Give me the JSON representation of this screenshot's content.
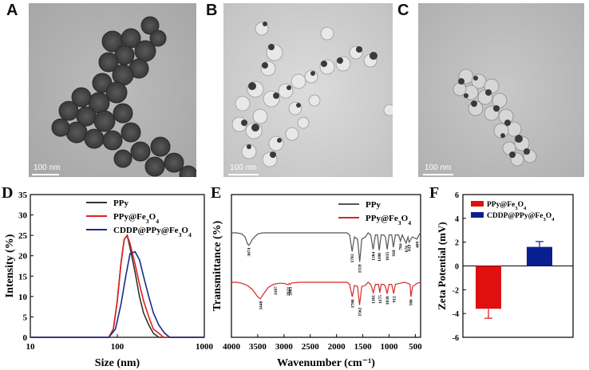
{
  "panels": {
    "A": {
      "label": "A",
      "scale_bar": "100 nm"
    },
    "B": {
      "label": "B",
      "scale_bar": "100 nm"
    },
    "C": {
      "label": "C",
      "scale_bar": "100 nm"
    },
    "D": {
      "label": "D"
    },
    "E": {
      "label": "E"
    },
    "F": {
      "label": "F"
    }
  },
  "colors": {
    "ppy": "#333333",
    "ppy_fe3o4": "#e02020",
    "cddp": "#1a2a8a"
  },
  "chart_data": [
    {
      "panel": "D",
      "type": "line",
      "xlabel": "Size (nm)",
      "ylabel": "Intensity (%)",
      "xscale": "log",
      "xlim": [
        10,
        1000
      ],
      "ylim": [
        0,
        35
      ],
      "xticks": [
        "10",
        "100",
        "1000"
      ],
      "yticks": [
        "0",
        "5",
        "10",
        "15",
        "20",
        "25",
        "30",
        "35"
      ],
      "legend": [
        "PPy",
        "PPy@Fe3O4",
        "CDDP@PPy@Fe3O4"
      ],
      "legend_placement": "top-right",
      "series": [
        {
          "name": "PPy",
          "color": "#333333",
          "x": [
            10,
            80,
            90,
            100,
            110,
            120,
            130,
            140,
            160,
            180,
            200,
            230,
            260,
            300,
            1000
          ],
          "y": [
            0,
            0,
            2,
            9,
            18,
            24,
            25,
            22,
            16,
            10,
            6,
            3,
            1,
            0,
            0
          ]
        },
        {
          "name": "PPy@Fe3O4",
          "color": "#e02020",
          "x": [
            10,
            80,
            90,
            100,
            110,
            120,
            130,
            140,
            160,
            180,
            200,
            230,
            260,
            300,
            340,
            1000
          ],
          "y": [
            0,
            0,
            2,
            9,
            18,
            24,
            25,
            23,
            18,
            13,
            9,
            5,
            2,
            1,
            0,
            0
          ]
        },
        {
          "name": "CDDP@PPy@Fe3O4",
          "color": "#1a2a8a",
          "x": [
            10,
            80,
            95,
            110,
            125,
            140,
            160,
            180,
            200,
            230,
            260,
            300,
            350,
            400,
            1000
          ],
          "y": [
            0,
            0,
            2,
            8,
            15,
            20.5,
            21,
            19,
            15,
            10,
            6,
            3,
            1,
            0,
            0
          ]
        }
      ]
    },
    {
      "panel": "E",
      "type": "line",
      "xlabel": "Wavenumber (cm⁻¹)",
      "ylabel": "Transmittance (%)",
      "xlim": [
        4000,
        400
      ],
      "xticks": [
        "4000",
        "3500",
        "3000",
        "2500",
        "2000",
        "1500",
        "1000",
        "500"
      ],
      "legend": [
        "PPy",
        "PPy@Fe3O4"
      ],
      "legend_placement": "top-right",
      "series": [
        {
          "name": "PPy",
          "color": "#555555",
          "x": [
            4000,
            3900,
            3800,
            3740,
            3700,
            3674,
            3640,
            3600,
            3500,
            3400,
            3200,
            3000,
            2800,
            2500,
            2200,
            2000,
            1800,
            1750,
            1703,
            1660,
            1600,
            1559,
            1520,
            1450,
            1400,
            1350,
            1304,
            1260,
            1220,
            1188,
            1150,
            1100,
            1070,
            1035,
            1000,
            950,
            918,
            880,
            820,
            784,
            750,
            676,
            640,
            619,
            560,
            469,
            430,
            400
          ],
          "y": [
            0,
            0,
            -0.05,
            -0.2,
            -0.5,
            -0.6,
            -0.5,
            -0.3,
            -0.05,
            0,
            0,
            0,
            0,
            0,
            0,
            0,
            0,
            -0.1,
            -0.9,
            -0.2,
            -0.3,
            -1.4,
            -0.3,
            -0.2,
            0,
            -0.1,
            -0.8,
            -0.1,
            -0.1,
            -0.85,
            -0.1,
            -0.1,
            -0.2,
            -0.8,
            -0.1,
            -0.1,
            -0.7,
            -0.1,
            -0.1,
            -0.4,
            -0.1,
            -0.5,
            -0.2,
            -0.45,
            -0.2,
            -0.3,
            -0.1,
            0
          ]
        },
        {
          "name": "PPy@Fe3O4",
          "color": "#d62828",
          "x": [
            4000,
            3900,
            3800,
            3700,
            3600,
            3500,
            3448,
            3400,
            3300,
            3200,
            3167,
            3100,
            3000,
            2922,
            2900,
            2883,
            2850,
            2700,
            2500,
            2000,
            1800,
            1750,
            1700,
            1660,
            1600,
            1562,
            1520,
            1450,
            1400,
            1350,
            1301,
            1260,
            1200,
            1175,
            1150,
            1100,
            1070,
            1036,
            1000,
            950,
            912,
            880,
            800,
            700,
            600,
            586,
            550,
            470,
            400
          ],
          "y": [
            0,
            0,
            -0.05,
            -0.15,
            -0.35,
            -0.7,
            -0.8,
            -0.6,
            -0.25,
            -0.1,
            -0.08,
            -0.05,
            -0.05,
            -0.12,
            -0.06,
            -0.1,
            -0.03,
            0,
            0,
            0,
            0,
            -0.1,
            -0.7,
            -0.15,
            -0.2,
            -1.1,
            -0.2,
            -0.15,
            0,
            -0.1,
            -0.5,
            -0.1,
            -0.1,
            -0.5,
            -0.1,
            -0.1,
            -0.2,
            -0.55,
            -0.1,
            -0.1,
            -0.55,
            -0.1,
            -0.05,
            0,
            -0.1,
            -0.7,
            -0.2,
            -0.05,
            0
          ]
        }
      ],
      "annotations": {
        "PPy": [
          "3674",
          "1703",
          "1559",
          "1304",
          "1188",
          "1035",
          "918",
          "784",
          "676",
          "619",
          "469"
        ],
        "PPy@Fe3O4": [
          "3448",
          "3167",
          "2922",
          "2883",
          "1700",
          "1562",
          "1301",
          "1175",
          "1036",
          "912",
          "586"
        ]
      }
    },
    {
      "panel": "F",
      "type": "bar",
      "ylabel": "Zeta Potential (mV)",
      "ylim": [
        -6,
        6
      ],
      "yticks": [
        "6",
        "4",
        "2",
        "0",
        "-2",
        "-4",
        "-6"
      ],
      "legend": [
        "PPy@Fe3O4",
        "CDDP@PPy@Fe3O4"
      ],
      "legend_placement": "top-left",
      "categories": [
        "PPy@Fe3O4",
        "CDDP@PPy@Fe3O4"
      ],
      "values": [
        -3.6,
        1.6
      ],
      "errors": [
        0.8,
        0.45
      ],
      "bar_colors": [
        "#e01010",
        "#0a1f8f"
      ]
    }
  ]
}
